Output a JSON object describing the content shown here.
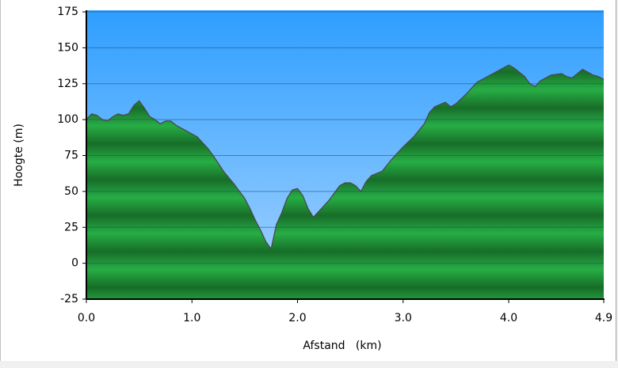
{
  "chart_data": {
    "type": "area",
    "x_label": "Afstand   (km)",
    "y_label": "Hoogte (m)",
    "x": [
      0,
      0.05,
      0.1,
      0.15,
      0.2,
      0.25,
      0.3,
      0.35,
      0.4,
      0.45,
      0.5,
      0.55,
      0.6,
      0.65,
      0.7,
      0.75,
      0.8,
      0.85,
      0.9,
      0.95,
      1.0,
      1.05,
      1.1,
      1.15,
      1.2,
      1.3,
      1.4,
      1.5,
      1.55,
      1.6,
      1.65,
      1.7,
      1.75,
      1.8,
      1.85,
      1.9,
      1.95,
      2.0,
      2.05,
      2.1,
      2.15,
      2.2,
      2.3,
      2.4,
      2.45,
      2.5,
      2.55,
      2.6,
      2.65,
      2.7,
      2.8,
      2.9,
      3.0,
      3.1,
      3.2,
      3.25,
      3.3,
      3.4,
      3.45,
      3.5,
      3.6,
      3.65,
      3.7,
      3.8,
      3.9,
      4.0,
      4.05,
      4.1,
      4.15,
      4.2,
      4.25,
      4.3,
      4.4,
      4.5,
      4.55,
      4.6,
      4.7,
      4.75,
      4.8,
      4.85,
      4.9
    ],
    "values": [
      100,
      104,
      103,
      100,
      99,
      102,
      104,
      103,
      104,
      110,
      113,
      108,
      102,
      100,
      97,
      99,
      99,
      96,
      94,
      92,
      90,
      88,
      84,
      80,
      75,
      64,
      55,
      45,
      38,
      30,
      23,
      15,
      10,
      27,
      35,
      45,
      51,
      52,
      47,
      38,
      32,
      36,
      44,
      54,
      56,
      56,
      54,
      50,
      57,
      61,
      64,
      73,
      81,
      88,
      97,
      105,
      109,
      112,
      109,
      111,
      118,
      122,
      126,
      130,
      134,
      138,
      136,
      133,
      130,
      125,
      123,
      127,
      131,
      132,
      130,
      129,
      135,
      133,
      131,
      130,
      128
    ],
    "color": "#1f9a38",
    "xlim": [
      0,
      4.9
    ],
    "xticks": [
      {
        "value": 0,
        "label": "0.0"
      },
      {
        "value": 1,
        "label": "1.0"
      },
      {
        "value": 2,
        "label": "2.0"
      },
      {
        "value": 3,
        "label": "3.0"
      },
      {
        "value": 4,
        "label": "4.0"
      },
      4.9
    ],
    "ylim": [
      -25,
      175
    ],
    "yticks": [
      -25,
      0,
      25,
      50,
      75,
      100,
      125,
      150,
      175
    ],
    "grid": true
  }
}
